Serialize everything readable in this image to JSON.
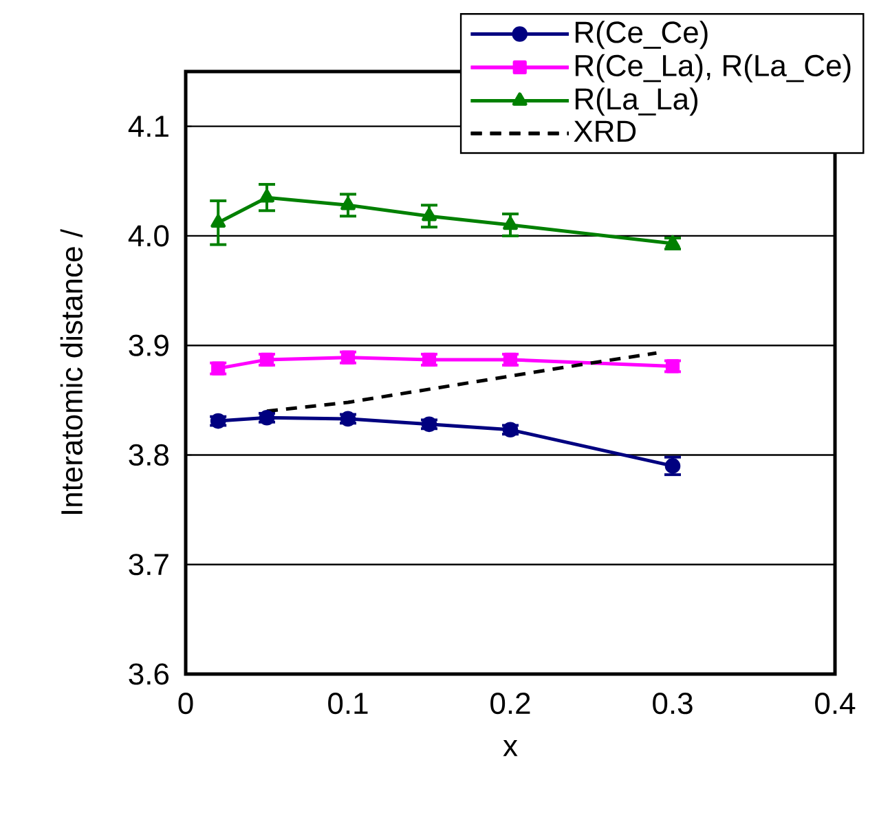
{
  "chart_data": {
    "type": "line",
    "xlabel": "x",
    "ylabel": "Interatomic distance  /",
    "xlim": [
      0,
      0.4
    ],
    "xticks": [
      0,
      0.1,
      0.2,
      0.3,
      0.4
    ],
    "ylim": [
      3.6,
      4.15
    ],
    "yticks": [
      3.6,
      3.7,
      3.8,
      3.9,
      {
        "value": 4.0,
        "label": "4.0"
      },
      4.1
    ],
    "grid": "y",
    "legend": "top right",
    "series": [
      {
        "name": "R(Ce_Ce)",
        "color": "#000080",
        "marker": "circle",
        "line_style": "solid",
        "x": [
          0.02,
          0.05,
          0.1,
          0.15,
          0.2,
          0.3
        ],
        "values": [
          3.831,
          3.834,
          3.833,
          3.828,
          3.823,
          3.79
        ],
        "errors": [
          0.004,
          0.004,
          0.004,
          0.004,
          0.004,
          0.008
        ]
      },
      {
        "name": "R(Ce_La), R(La_Ce)",
        "color": "#ff00ff",
        "marker": "square",
        "line_style": "solid",
        "x": [
          0.02,
          0.05,
          0.1,
          0.15,
          0.2,
          0.3
        ],
        "values": [
          3.879,
          3.887,
          3.889,
          3.887,
          3.887,
          3.881
        ],
        "errors": [
          0.005,
          0.005,
          0.005,
          0.005,
          0.005,
          0.005
        ]
      },
      {
        "name": "R(La_La)",
        "color": "#008000",
        "marker": "triangle",
        "line_style": "solid",
        "x": [
          0.02,
          0.05,
          0.1,
          0.15,
          0.2,
          0.3
        ],
        "values": [
          4.012,
          4.035,
          4.028,
          4.018,
          4.01,
          3.993
        ],
        "errors": [
          0.02,
          0.012,
          0.01,
          0.01,
          0.01,
          0.005
        ]
      },
      {
        "name": "XRD",
        "color": "#000000",
        "marker": "none",
        "line_style": "dashed",
        "x": [
          0.05,
          0.1,
          0.15,
          0.2,
          0.25,
          0.29
        ],
        "values": [
          3.84,
          3.848,
          3.86,
          3.872,
          3.884,
          3.893
        ]
      }
    ]
  }
}
